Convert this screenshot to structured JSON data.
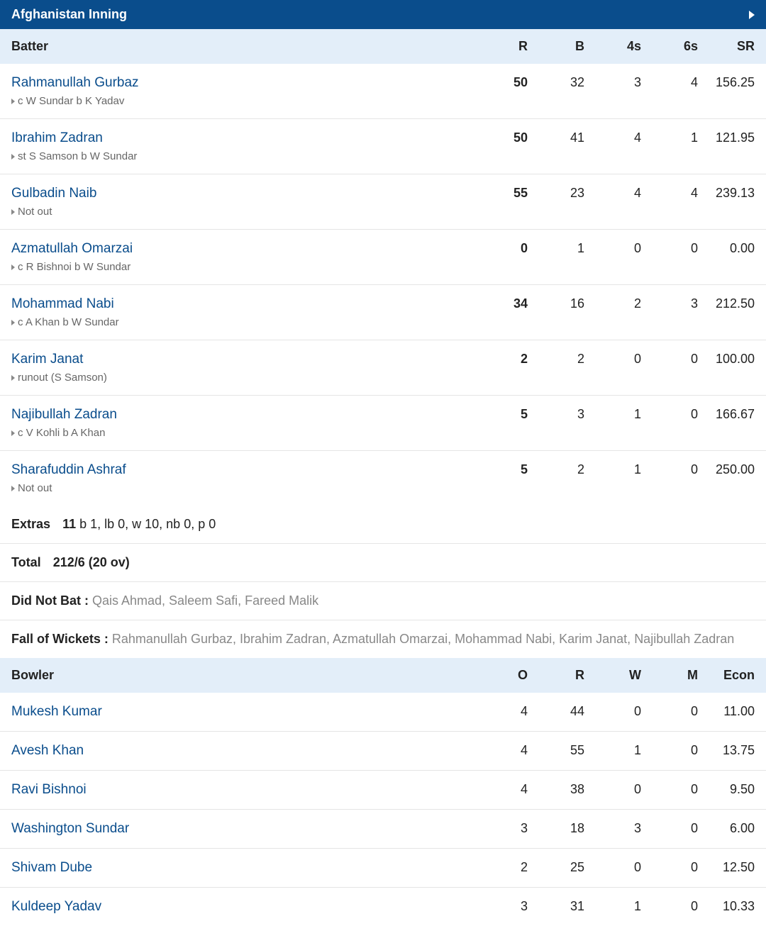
{
  "inning_title": "Afghanistan Inning",
  "batter_headers": {
    "name": "Batter",
    "r": "R",
    "b": "B",
    "fours": "4s",
    "sixes": "6s",
    "sr": "SR"
  },
  "batters": [
    {
      "name": "Rahmanullah Gurbaz",
      "dismissal": "c W Sundar b K Yadav",
      "r": "50",
      "b": "32",
      "fours": "3",
      "sixes": "4",
      "sr": "156.25"
    },
    {
      "name": "Ibrahim Zadran",
      "dismissal": "st S Samson b W Sundar",
      "r": "50",
      "b": "41",
      "fours": "4",
      "sixes": "1",
      "sr": "121.95"
    },
    {
      "name": "Gulbadin Naib",
      "dismissal": "Not out",
      "r": "55",
      "b": "23",
      "fours": "4",
      "sixes": "4",
      "sr": "239.13"
    },
    {
      "name": "Azmatullah Omarzai",
      "dismissal": "c R Bishnoi b W Sundar",
      "r": "0",
      "b": "1",
      "fours": "0",
      "sixes": "0",
      "sr": "0.00"
    },
    {
      "name": "Mohammad Nabi",
      "dismissal": "c A Khan b W Sundar",
      "r": "34",
      "b": "16",
      "fours": "2",
      "sixes": "3",
      "sr": "212.50"
    },
    {
      "name": "Karim Janat",
      "dismissal": "runout (S Samson)",
      "r": "2",
      "b": "2",
      "fours": "0",
      "sixes": "0",
      "sr": "100.00"
    },
    {
      "name": "Najibullah Zadran",
      "dismissal": "c V Kohli b A Khan",
      "r": "5",
      "b": "3",
      "fours": "1",
      "sixes": "0",
      "sr": "166.67"
    },
    {
      "name": "Sharafuddin Ashraf",
      "dismissal": "Not out",
      "r": "5",
      "b": "2",
      "fours": "1",
      "sixes": "0",
      "sr": "250.00"
    }
  ],
  "extras": {
    "label": "Extras",
    "total": "11",
    "detail": " b 1, lb 0, w 10, nb 0, p 0"
  },
  "total": {
    "label": "Total",
    "value": "212/6 (20 ov)"
  },
  "dnb": {
    "label": "Did Not Bat : ",
    "names": "Qais Ahmad, Saleem Safi, Fareed Malik"
  },
  "fow": {
    "label": "Fall of Wickets : ",
    "names": "Rahmanullah Gurbaz, Ibrahim Zadran, Azmatullah Omarzai, Mohammad Nabi, Karim Janat, Najibullah Zadran"
  },
  "bowler_headers": {
    "name": "Bowler",
    "o": "O",
    "r": "R",
    "w": "W",
    "m": "M",
    "econ": "Econ"
  },
  "bowlers": [
    {
      "name": "Mukesh Kumar",
      "o": "4",
      "r": "44",
      "w": "0",
      "m": "0",
      "econ": "11.00"
    },
    {
      "name": "Avesh Khan",
      "o": "4",
      "r": "55",
      "w": "1",
      "m": "0",
      "econ": "13.75"
    },
    {
      "name": "Ravi Bishnoi",
      "o": "4",
      "r": "38",
      "w": "0",
      "m": "0",
      "econ": "9.50"
    },
    {
      "name": "Washington Sundar",
      "o": "3",
      "r": "18",
      "w": "3",
      "m": "0",
      "econ": "6.00"
    },
    {
      "name": "Shivam Dube",
      "o": "2",
      "r": "25",
      "w": "0",
      "m": "0",
      "econ": "12.50"
    },
    {
      "name": "Kuldeep Yadav",
      "o": "3",
      "r": "31",
      "w": "1",
      "m": "0",
      "econ": "10.33"
    }
  ]
}
